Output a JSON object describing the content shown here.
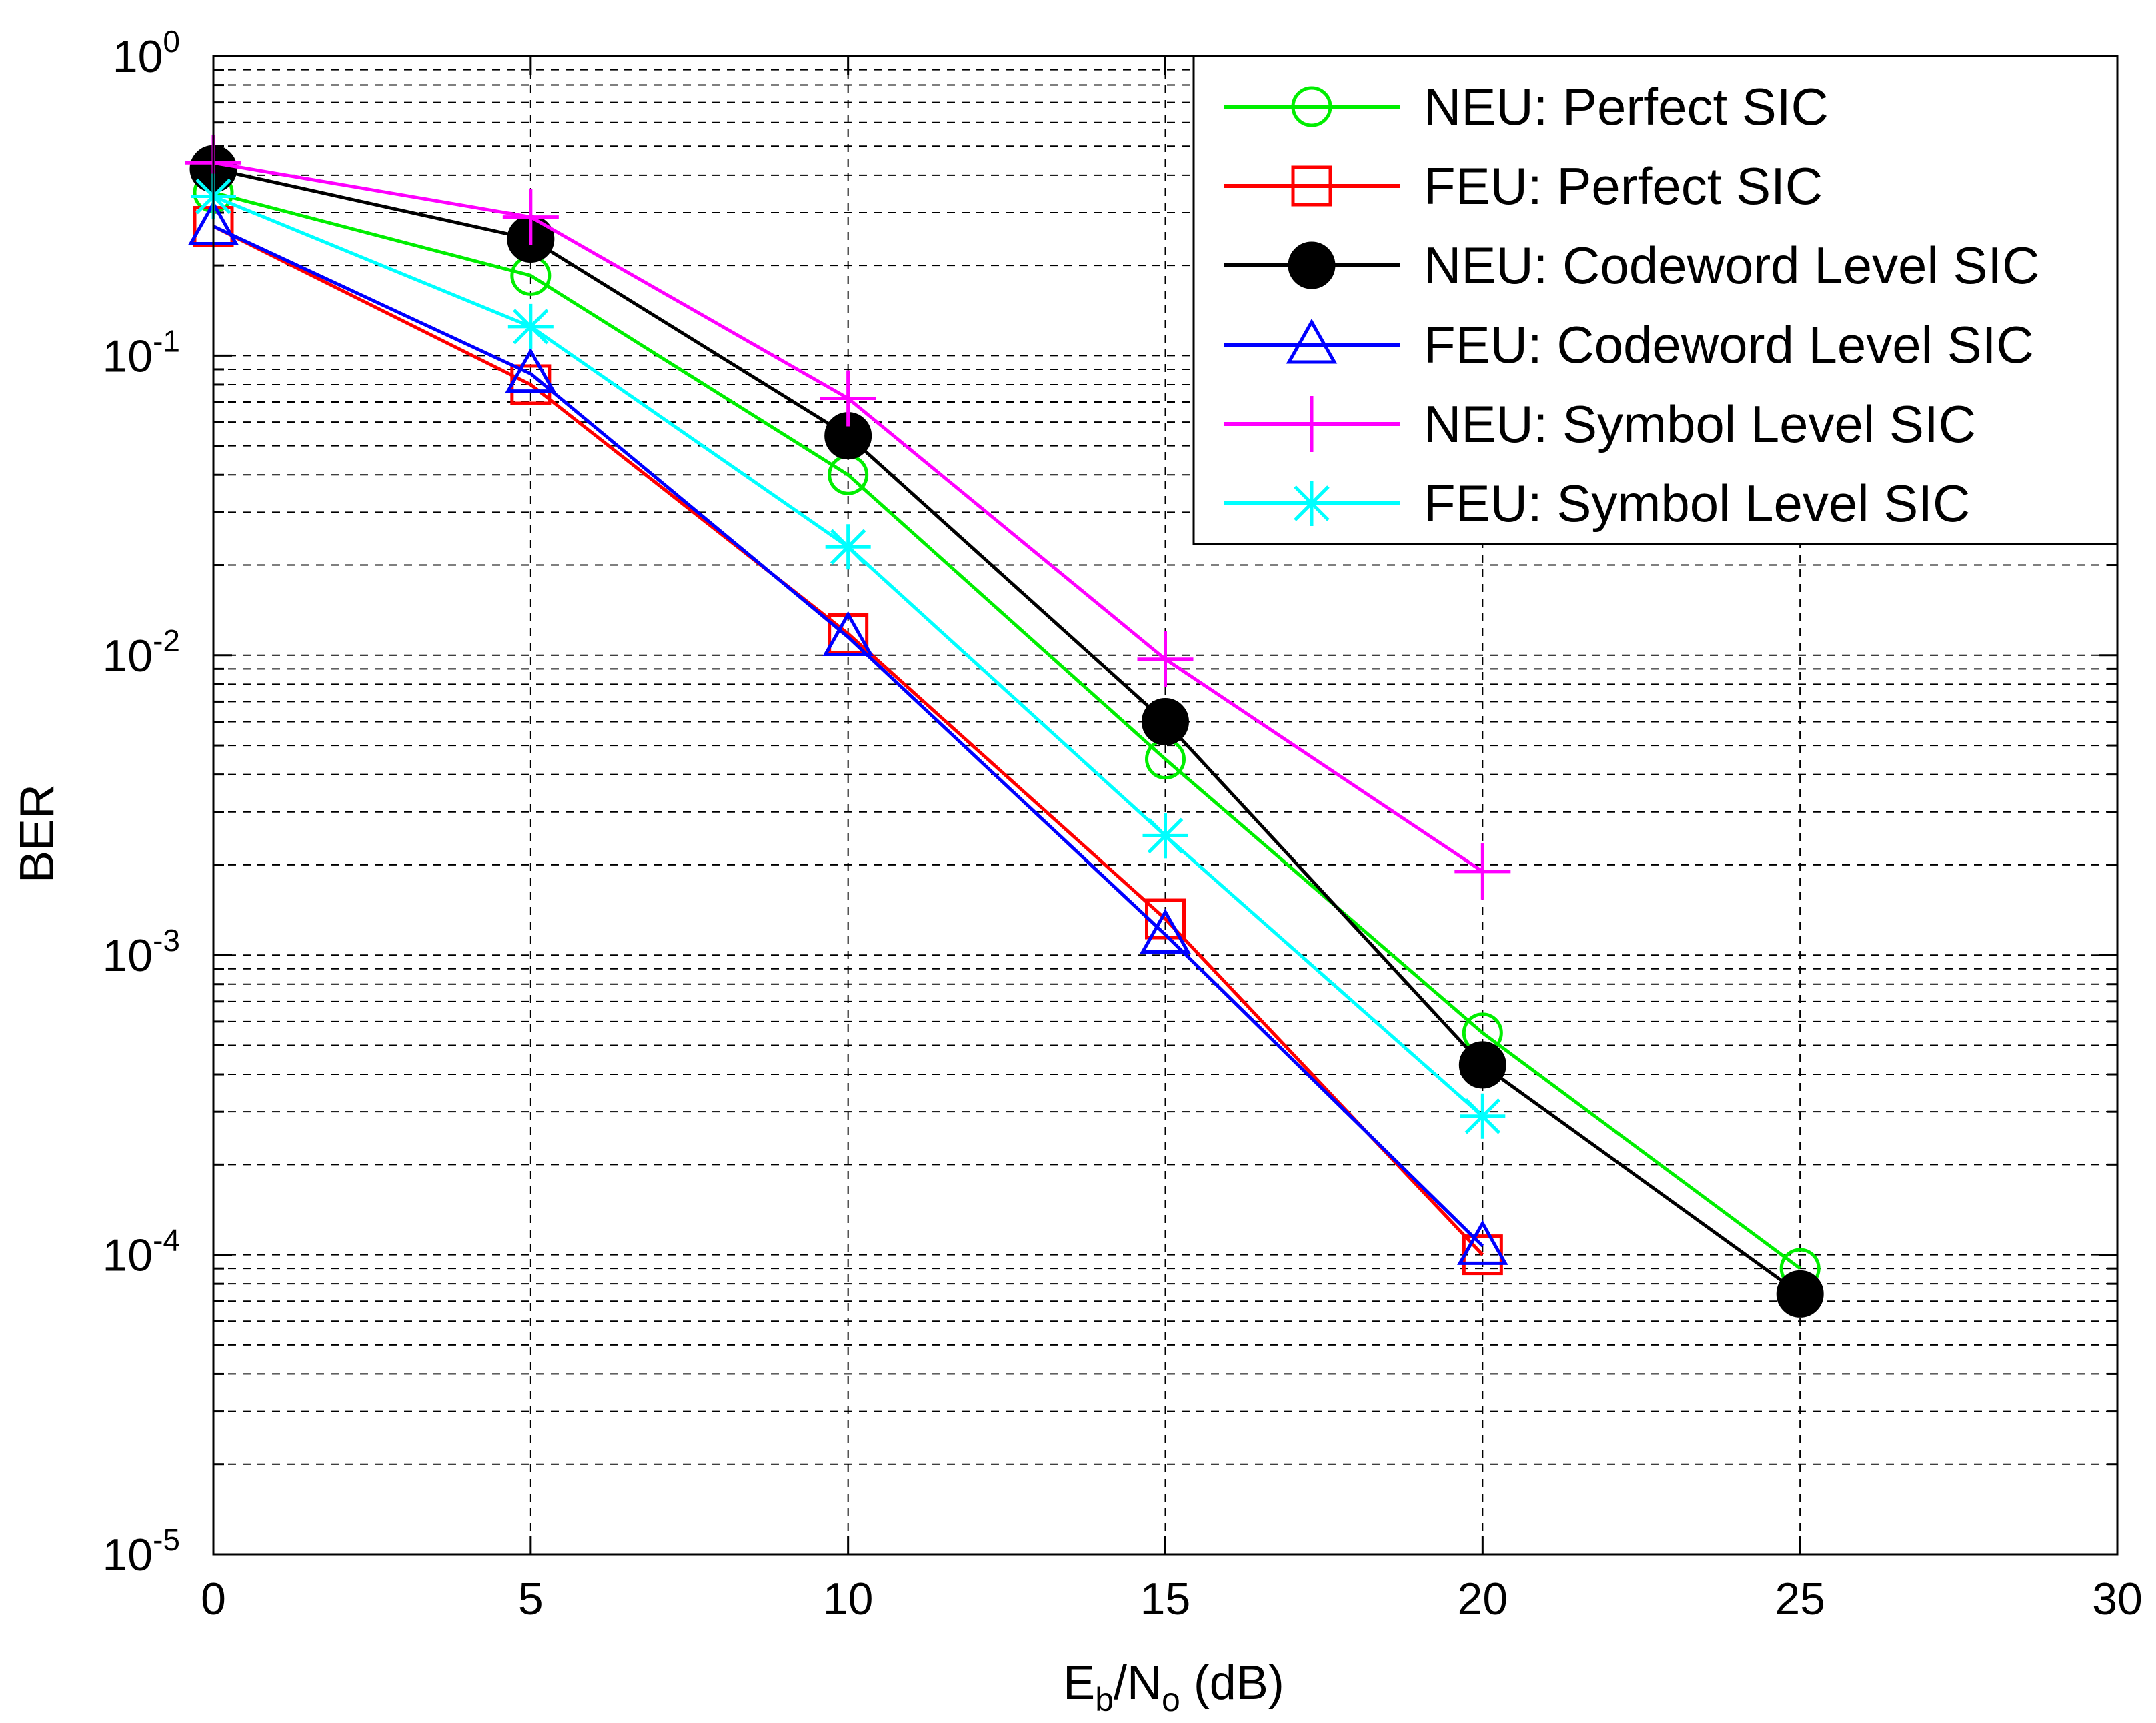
{
  "chart_data": {
    "type": "line",
    "title": "",
    "xlabel": {
      "main": "E",
      "sub1": "b",
      "mid": "/N",
      "sub2": "o",
      "tail": " (dB)"
    },
    "ylabel": "BER",
    "x_scale": "linear",
    "y_scale": "log",
    "xlim": [
      0,
      30
    ],
    "ylim": [
      1e-05,
      1
    ],
    "grid": true,
    "legend_position": "top-right",
    "x_ticks": [
      {
        "value": 0,
        "label": "0"
      },
      {
        "value": 5,
        "label": "5"
      },
      {
        "value": 10,
        "label": "10"
      },
      {
        "value": 15,
        "label": "15"
      },
      {
        "value": 20,
        "label": "20"
      },
      {
        "value": 25,
        "label": "25"
      },
      {
        "value": 30,
        "label": "30"
      }
    ],
    "y_ticks": [
      {
        "value": 1,
        "base": "10",
        "exp": "0"
      },
      {
        "value": 0.1,
        "base": "10",
        "exp": "-1"
      },
      {
        "value": 0.01,
        "base": "10",
        "exp": "-2"
      },
      {
        "value": 0.001,
        "base": "10",
        "exp": "-3"
      },
      {
        "value": 0.0001,
        "base": "10",
        "exp": "-4"
      },
      {
        "value": 1e-05,
        "base": "10",
        "exp": "-5"
      }
    ],
    "series": [
      {
        "name": "NEU: Perfect SIC",
        "color": "#00ee00",
        "marker": "circle",
        "x": [
          0,
          5,
          10,
          15,
          20,
          25
        ],
        "y": [
          0.35,
          0.185,
          0.04,
          0.0045,
          0.00055,
          9e-05
        ]
      },
      {
        "name": "FEU: Perfect SIC",
        "color": "#ff0000",
        "marker": "square",
        "x": [
          0,
          5,
          10,
          15,
          20
        ],
        "y": [
          0.27,
          0.08,
          0.0118,
          0.00132,
          0.0001
        ]
      },
      {
        "name": "NEU: Codeword Level SIC",
        "color": "#000000",
        "marker": "filled-circle",
        "x": [
          0,
          5,
          10,
          15,
          20,
          25
        ],
        "y": [
          0.42,
          0.245,
          0.054,
          0.006,
          0.00043,
          7.4e-05
        ]
      },
      {
        "name": "FEU: Codeword Level SIC",
        "color": "#0000ff",
        "marker": "triangle",
        "x": [
          0,
          5,
          10,
          15,
          20
        ],
        "y": [
          0.27,
          0.087,
          0.0115,
          0.00117,
          0.000107
        ]
      },
      {
        "name": "NEU: Symbol Level SIC",
        "color": "#ff00ff",
        "marker": "plus",
        "x": [
          0,
          5,
          10,
          15,
          20
        ],
        "y": [
          0.44,
          0.29,
          0.072,
          0.0097,
          0.0019
        ]
      },
      {
        "name": "FEU: Symbol Level SIC",
        "color": "#00ffff",
        "marker": "star",
        "x": [
          0,
          5,
          10,
          15,
          20
        ],
        "y": [
          0.34,
          0.125,
          0.023,
          0.0025,
          0.00029
        ]
      }
    ]
  }
}
